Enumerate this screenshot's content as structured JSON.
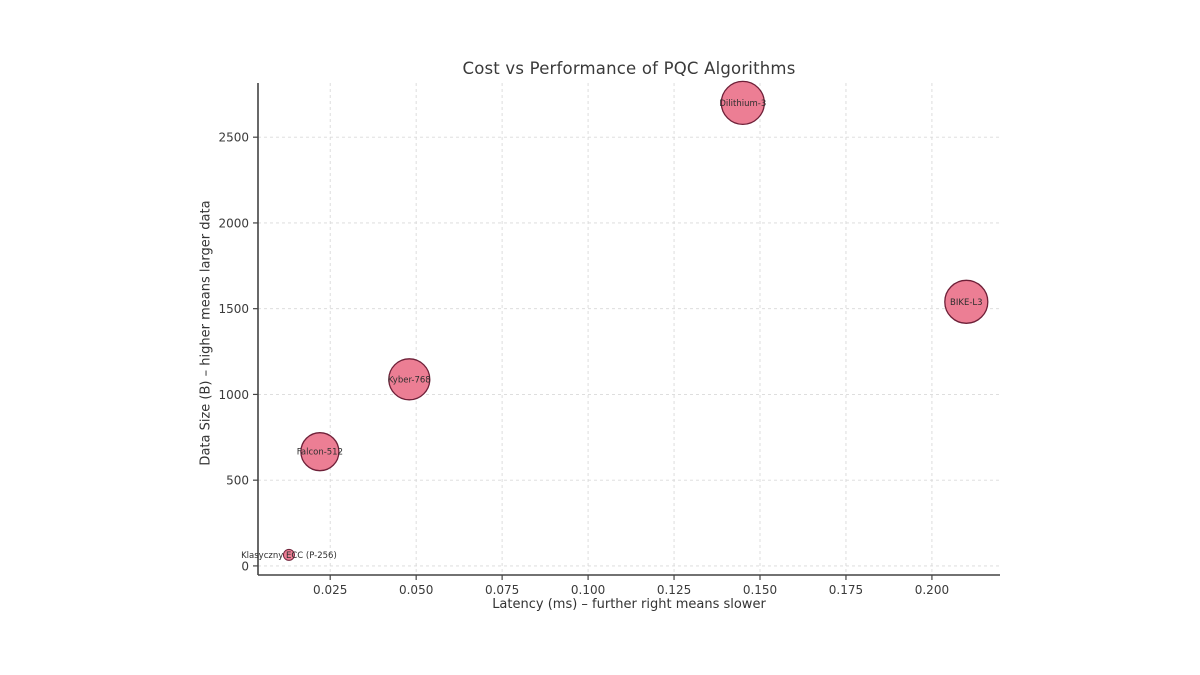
{
  "chart_data": {
    "type": "scatter",
    "title": "Cost vs Performance of PQC Algorithms",
    "xlabel": "Latency (ms) – further right means slower",
    "ylabel": "Data Size (B) – higher means larger data",
    "xlim": [
      0.004,
      0.2198
    ],
    "ylim": [
      -53,
      2816
    ],
    "x_ticks": [
      0.025,
      0.05,
      0.075,
      0.1,
      0.125,
      0.15,
      0.175,
      0.2
    ],
    "x_tick_labels": [
      "0.025",
      "0.050",
      "0.075",
      "0.100",
      "0.125",
      "0.150",
      "0.175",
      "0.200"
    ],
    "y_ticks": [
      0,
      500,
      1000,
      1500,
      2000,
      2500
    ],
    "y_tick_labels": [
      "0",
      "500",
      "1000",
      "1500",
      "2000",
      "2500"
    ],
    "grid": true,
    "legend": "none",
    "points": [
      {
        "label": "Klasyczny ECC (P-256)",
        "x": 0.013,
        "y": 64,
        "radius_px": 5.5
      },
      {
        "label": "Falcon-512",
        "x": 0.022,
        "y": 666,
        "radius_px": 19
      },
      {
        "label": "Kyber-768",
        "x": 0.048,
        "y": 1088,
        "radius_px": 20.5
      },
      {
        "label": "Dilithium-3",
        "x": 0.145,
        "y": 2700,
        "radius_px": 21.5
      },
      {
        "label": "BIKE-L3",
        "x": 0.21,
        "y": 1540,
        "radius_px": 21.5
      }
    ],
    "colors": {
      "bubble_fill": "#ec7e94",
      "bubble_edge": "#6e2038",
      "grid": "#d9d9d9",
      "spine": "#434343",
      "tick_text": "#3b3b3b",
      "title_text": "#3a3a3a",
      "background": "#ffffff"
    }
  }
}
